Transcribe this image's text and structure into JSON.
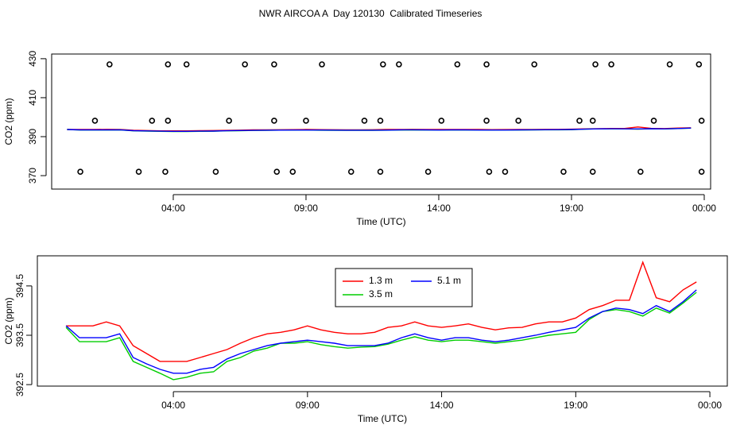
{
  "title": "NWR AIRCOA A  Day 120130  Calibrated Timeseries",
  "chart_data": [
    {
      "type": "line",
      "x_label": "Time (UTC)",
      "y_label": "CO2 (ppm)",
      "xlim": [
        -0.58,
        24.24
      ],
      "ylim": [
        363.1,
        432.4
      ],
      "xticks": [
        {
          "value": 4,
          "label": "04:00"
        },
        {
          "value": 9,
          "label": "09:00"
        },
        {
          "value": 14,
          "label": "14:00"
        },
        {
          "value": 19,
          "label": "19:00"
        },
        {
          "value": 24,
          "label": "00:00"
        }
      ],
      "yticks": [
        370,
        390,
        410,
        430
      ],
      "x": [
        0,
        0.5,
        1,
        1.5,
        2,
        2.5,
        3,
        3.5,
        4,
        4.5,
        5,
        5.5,
        6,
        6.5,
        7,
        7.5,
        8,
        8.5,
        9,
        9.5,
        10,
        10.5,
        11,
        11.5,
        12,
        12.5,
        13,
        13.5,
        14,
        14.5,
        15,
        15.5,
        16,
        16.5,
        17,
        17.5,
        18,
        18.5,
        19,
        19.5,
        20,
        20.5,
        21,
        21.5,
        22,
        22.5,
        23,
        23.5
      ],
      "series": [
        {
          "color": "#ff0000",
          "values": [
            393.69,
            393.69,
            393.69,
            393.77,
            393.69,
            393.29,
            393.13,
            392.97,
            392.97,
            392.97,
            393.05,
            393.13,
            393.21,
            393.34,
            393.45,
            393.53,
            393.56,
            393.61,
            393.69,
            393.61,
            393.56,
            393.53,
            393.53,
            393.56,
            393.66,
            393.69,
            393.77,
            393.69,
            393.66,
            393.69,
            393.73,
            393.66,
            393.61,
            393.65,
            393.66,
            393.73,
            393.77,
            393.77,
            393.85,
            394.02,
            394.1,
            394.21,
            394.21,
            394.98,
            394.26,
            394.18,
            394.42,
            394.58
          ]
        },
        {
          "color": "#00cd00",
          "values": [
            393.66,
            393.37,
            393.37,
            393.37,
            393.45,
            392.97,
            392.85,
            392.73,
            392.6,
            392.65,
            392.73,
            392.76,
            392.97,
            393.05,
            393.18,
            393.24,
            393.34,
            393.34,
            393.37,
            393.31,
            393.27,
            393.24,
            393.26,
            393.27,
            393.32,
            393.4,
            393.47,
            393.4,
            393.37,
            393.4,
            393.4,
            393.37,
            393.34,
            393.37,
            393.4,
            393.45,
            393.5,
            393.53,
            393.56,
            393.82,
            393.98,
            394.02,
            393.98,
            393.89,
            394.05,
            393.95,
            394.15,
            394.37
          ]
        },
        {
          "color": "#0000ff",
          "values": [
            393.69,
            393.45,
            393.45,
            393.45,
            393.53,
            393.05,
            392.92,
            392.81,
            392.73,
            392.73,
            392.81,
            392.85,
            393.02,
            393.13,
            393.21,
            393.29,
            393.34,
            393.37,
            393.4,
            393.37,
            393.34,
            393.29,
            393.29,
            393.29,
            393.34,
            393.45,
            393.53,
            393.45,
            393.4,
            393.45,
            393.45,
            393.4,
            393.37,
            393.4,
            393.45,
            393.5,
            393.56,
            393.61,
            393.66,
            393.85,
            393.98,
            394.05,
            394.02,
            393.94,
            394.1,
            393.98,
            394.18,
            394.42
          ]
        }
      ],
      "markers": {
        "color": "#000000",
        "x": [
          1.6,
          3.8,
          4.5,
          6.7,
          7.8,
          9.6,
          11.9,
          12.5,
          14.7,
          15.8,
          17.6,
          19.9,
          20.5,
          22.7,
          23.8,
          1.05,
          3.2,
          3.8,
          6.1,
          7.8,
          9.0,
          11.2,
          11.8,
          14.1,
          15.8,
          17.0,
          19.3,
          19.8,
          22.1,
          23.9,
          0.5,
          2.7,
          3.7,
          5.6,
          7.9,
          8.5,
          10.7,
          11.8,
          13.6,
          15.9,
          16.5,
          18.7,
          19.8,
          21.6,
          23.9
        ],
        "values": [
          427.1,
          427.1,
          427.1,
          427.1,
          427.1,
          427.1,
          427.1,
          427.1,
          427.1,
          427.1,
          427.1,
          427.1,
          427.1,
          427.1,
          427.1,
          398.2,
          398.2,
          398.2,
          398.2,
          398.2,
          398.2,
          398.2,
          398.2,
          398.2,
          398.2,
          398.2,
          398.2,
          398.2,
          398.2,
          398.2,
          372.0,
          372.0,
          372.0,
          372.0,
          372.0,
          372.0,
          372.0,
          372.0,
          372.0,
          372.0,
          372.0,
          372.0,
          372.0,
          372.0,
          372.0
        ]
      }
    },
    {
      "type": "line",
      "x_label": "Time (UTC)",
      "y_label": "CO2 (ppm)",
      "xlim": [
        -1.07,
        24.65
      ],
      "ylim": [
        392.47,
        395.11
      ],
      "xticks": [
        {
          "value": 4,
          "label": "04:00"
        },
        {
          "value": 9,
          "label": "09:00"
        },
        {
          "value": 14,
          "label": "14:00"
        },
        {
          "value": 19,
          "label": "19:00"
        },
        {
          "value": 24,
          "label": "00:00"
        }
      ],
      "yticks": [
        392.5,
        393.5,
        394.5
      ],
      "legend": "top",
      "x": [
        0,
        0.5,
        1,
        1.5,
        2,
        2.5,
        3,
        3.5,
        4,
        4.5,
        5,
        5.5,
        6,
        6.5,
        7,
        7.5,
        8,
        8.5,
        9,
        9.5,
        10,
        10.5,
        11,
        11.5,
        12,
        12.5,
        13,
        13.5,
        14,
        14.5,
        15,
        15.5,
        16,
        16.5,
        17,
        17.5,
        18,
        18.5,
        19,
        19.5,
        20,
        20.5,
        21,
        21.5,
        22,
        22.5,
        23,
        23.5
      ],
      "series": [
        {
          "name": "1.3 m",
          "color": "#ff0000",
          "values": [
            393.69,
            393.69,
            393.69,
            393.77,
            393.69,
            393.29,
            393.13,
            392.97,
            392.97,
            392.97,
            393.05,
            393.13,
            393.21,
            393.34,
            393.45,
            393.53,
            393.56,
            393.61,
            393.69,
            393.61,
            393.56,
            393.53,
            393.53,
            393.56,
            393.66,
            393.69,
            393.77,
            393.69,
            393.66,
            393.69,
            393.73,
            393.66,
            393.61,
            393.65,
            393.66,
            393.73,
            393.77,
            393.77,
            393.85,
            394.02,
            394.1,
            394.21,
            394.21,
            394.98,
            394.26,
            394.18,
            394.42,
            394.58
          ]
        },
        {
          "name": "3.5 m",
          "color": "#00cd00",
          "values": [
            393.66,
            393.37,
            393.37,
            393.37,
            393.45,
            392.97,
            392.85,
            392.73,
            392.6,
            392.65,
            392.73,
            392.76,
            392.97,
            393.05,
            393.18,
            393.24,
            393.34,
            393.34,
            393.37,
            393.31,
            393.27,
            393.24,
            393.26,
            393.27,
            393.32,
            393.4,
            393.47,
            393.4,
            393.37,
            393.4,
            393.4,
            393.37,
            393.34,
            393.37,
            393.4,
            393.45,
            393.5,
            393.53,
            393.56,
            393.82,
            393.98,
            394.02,
            393.98,
            393.89,
            394.05,
            393.95,
            394.15,
            394.37
          ]
        },
        {
          "name": "5.1 m",
          "color": "#0000ff",
          "values": [
            393.69,
            393.45,
            393.45,
            393.45,
            393.53,
            393.05,
            392.92,
            392.81,
            392.73,
            392.73,
            392.81,
            392.85,
            393.02,
            393.13,
            393.21,
            393.29,
            393.34,
            393.37,
            393.4,
            393.37,
            393.34,
            393.29,
            393.29,
            393.29,
            393.34,
            393.45,
            393.53,
            393.45,
            393.4,
            393.45,
            393.45,
            393.4,
            393.37,
            393.4,
            393.45,
            393.5,
            393.56,
            393.61,
            393.66,
            393.85,
            393.98,
            394.05,
            394.02,
            393.94,
            394.1,
            393.98,
            394.18,
            394.42
          ]
        }
      ]
    }
  ]
}
